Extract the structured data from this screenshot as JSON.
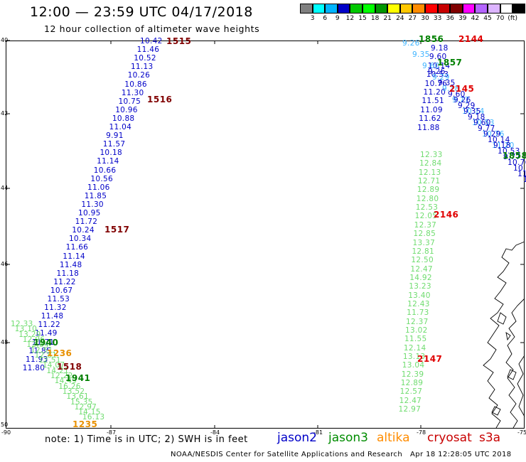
{
  "title": "12:00 — 23:59 UTC 04/17/2018",
  "subtitle": "12 hour collection of altimeter wave heights",
  "scale": {
    "colors": [
      "#808080",
      "#00ffff",
      "#00b4ff",
      "#0000c8",
      "#00c800",
      "#00ff00",
      "#009600",
      "#ffff00",
      "#ffc800",
      "#ff8c00",
      "#ff0000",
      "#c80000",
      "#800000",
      "#ff00ff",
      "#b464ff",
      "#dcb4ff",
      "#ffffff",
      "#000000"
    ],
    "labels": [
      "3",
      "6",
      "9",
      "12",
      "15",
      "18",
      "21",
      "24",
      "27",
      "30",
      "33",
      "36",
      "39",
      "42",
      "45",
      "70",
      "(ft)"
    ]
  },
  "axes": {
    "lat_labels": [
      "40",
      "42",
      "44",
      "46",
      "48",
      "50"
    ],
    "lon_labels": [
      "-90",
      "-87",
      "-84",
      "-81",
      "-78",
      "-75"
    ]
  },
  "colors": {
    "jason2": "#0000c8",
    "jason3": "#008c00",
    "altika": "#ff8c00",
    "cryosat": "#c80000",
    "s3a": "#c80000",
    "light_green": "#6fdc6f",
    "cyan": "#40b4ff",
    "time_maroon": "#800000",
    "time_darkgreen": "#008000",
    "time_red": "#e00000",
    "time_orange": "#e89000"
  },
  "observations": {
    "jason2_track1": [
      "10.42",
      "11.46",
      "10.52",
      "11.13",
      "10.26",
      "10.86",
      "11.30",
      "10.75",
      "10.96",
      "10.88",
      "11.04",
      "9.91",
      "11.57",
      "10.18",
      "11.14",
      "10.66",
      "10.56",
      "11.06",
      "11.85",
      "11.30",
      "10.95",
      "11.72",
      "10.24",
      "10.34",
      "11.66",
      "11.14",
      "11.48",
      "11.18",
      "11.22",
      "10.67",
      "11.53",
      "11.32",
      "11.48",
      "11.22",
      "11.49",
      "11.71",
      "11.85",
      "11.93",
      "11.80"
    ],
    "jason2_track2": [
      "9.18",
      "9.60",
      "10.14",
      "10.53",
      "10.76",
      "11.20",
      "11.51",
      "11.09",
      "11.62",
      "11.88"
    ],
    "jason3_track": [
      "12.33",
      "12.84",
      "12.13",
      "12.71",
      "12.89",
      "12.80",
      "12.53",
      "12.05",
      "12.37",
      "12.85",
      "13.37",
      "12.81",
      "12.50",
      "12.47",
      "14.92",
      "13.23",
      "13.40",
      "12.43",
      "11.73",
      "12.37",
      "13.02",
      "11.55",
      "12.14",
      "13.13",
      "13.04",
      "12.39",
      "12.89",
      "12.57",
      "12.47",
      "12.97"
    ],
    "sw_cluster": [
      "12.33",
      "13.10",
      "13.29",
      "12.96",
      "12.84",
      "12.51",
      "12.81",
      "12.51",
      "14.07",
      "14.21",
      "12.22",
      "14.49",
      "16.26",
      "13.52",
      "13.61",
      "15.35",
      "12.97",
      "14.15",
      "16.13"
    ]
  },
  "times": {
    "t1515": "1515",
    "t1516": "1516",
    "t1517": "1517",
    "t1518": "1518",
    "t1940": "1940",
    "t1941": "1941",
    "t1236": "1236",
    "t1235": "1235",
    "t2144": "2144",
    "t2145": "2145",
    "t2146": "2146",
    "t2147": "2147",
    "t1856": "1856",
    "t1857": "1857",
    "t1858": "1858"
  },
  "note": "note:  1) Time is in UTC;  2) SWH is in feet",
  "legend": {
    "jason2": "jason2",
    "jason3": "jason3",
    "altika": "altika",
    "cryosat": "cryosat",
    "s3a": "s3a"
  },
  "credit": "NOAA/NESDIS Center for Satellite Applications and Research",
  "timestamp": "Apr 18 12:28:05 UTC 2018"
}
